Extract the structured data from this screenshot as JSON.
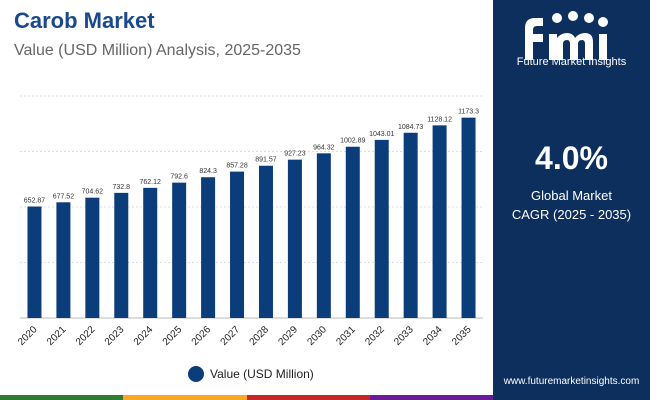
{
  "header": {
    "title": "Carob Market",
    "subtitle": "Value (USD Million) Analysis, 2025-2035"
  },
  "sidebar": {
    "brand_name": "Future Market Insights",
    "cagr_value": "4.0%",
    "cagr_label_line1": "Global Market",
    "cagr_label_line2": "CAGR (2025 - 2035)",
    "website": "www.futuremarketinsights.com"
  },
  "colors": {
    "bar": "#0b3d7a",
    "title": "#1a4a8c",
    "sidebar": "#0d2f5e",
    "strip": [
      "#2e7d32",
      "#f9a825",
      "#c62828",
      "#6a1b9a"
    ]
  },
  "chart_data": {
    "type": "bar",
    "title": "Carob Market",
    "subtitle": "Value (USD Million) Analysis, 2025-2035",
    "categories": [
      "2020",
      "2021",
      "2022",
      "2023",
      "2024",
      "2025",
      "2026",
      "2027",
      "2028",
      "2029",
      "2030",
      "2031",
      "2032",
      "2033",
      "2034",
      "2035"
    ],
    "series": [
      {
        "name": "Value (USD Million)",
        "values": [
          652.87,
          677.52,
          704.62,
          732.8,
          762.12,
          792.6,
          824.3,
          857.28,
          891.57,
          927.23,
          964.32,
          1002.89,
          1043.01,
          1084.73,
          1128.12,
          1173.3
        ],
        "labels": [
          "652.87",
          "677.52",
          "704.62",
          "732.8",
          "762.12",
          "792.6",
          "824.3",
          "857.28",
          "891.57",
          "927.23",
          "964.32",
          "1002.89",
          "1043.01",
          "1084.73",
          "1128.12",
          "1173.3"
        ]
      }
    ],
    "ylim": [
      0,
      1300
    ],
    "grid": true,
    "legend": "bottom-center"
  }
}
